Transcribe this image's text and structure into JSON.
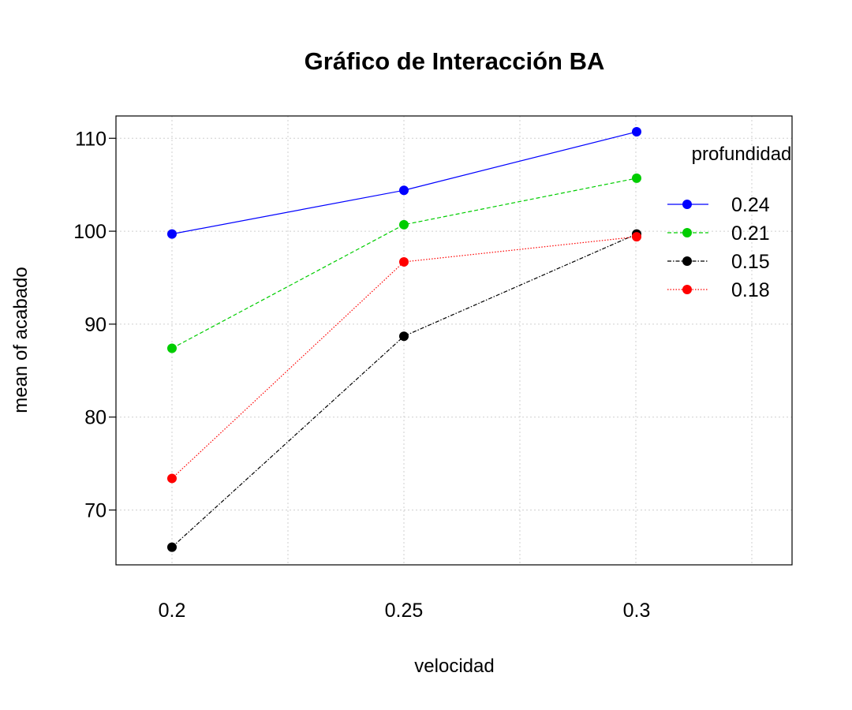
{
  "chart_data": {
    "type": "line",
    "title": "Gráfico de Interacción BA",
    "xlabel": "velocidad",
    "ylabel": "mean of  acabado",
    "categories": [
      "0.2",
      "0.25",
      "0.3"
    ],
    "y_ticks": [
      "70",
      "80",
      "90",
      "100",
      "110"
    ],
    "ylim": [
      64.1,
      112.4
    ],
    "grid": true,
    "legend_title": "profundidad",
    "legend_position": "top-right",
    "series": [
      {
        "name": "0.24",
        "color": "#0000ff",
        "dash": "solid",
        "values": [
          99.7,
          104.4,
          110.7
        ]
      },
      {
        "name": "0.21",
        "color": "#00cd00",
        "dash": "dashed",
        "values": [
          87.4,
          100.7,
          105.7
        ]
      },
      {
        "name": "0.15",
        "color": "#000000",
        "dash": "dashdot",
        "values": [
          66.0,
          88.7,
          99.7
        ]
      },
      {
        "name": "0.18",
        "color": "#ff0000",
        "dash": "dotted",
        "values": [
          73.4,
          96.7,
          99.4
        ]
      }
    ]
  }
}
